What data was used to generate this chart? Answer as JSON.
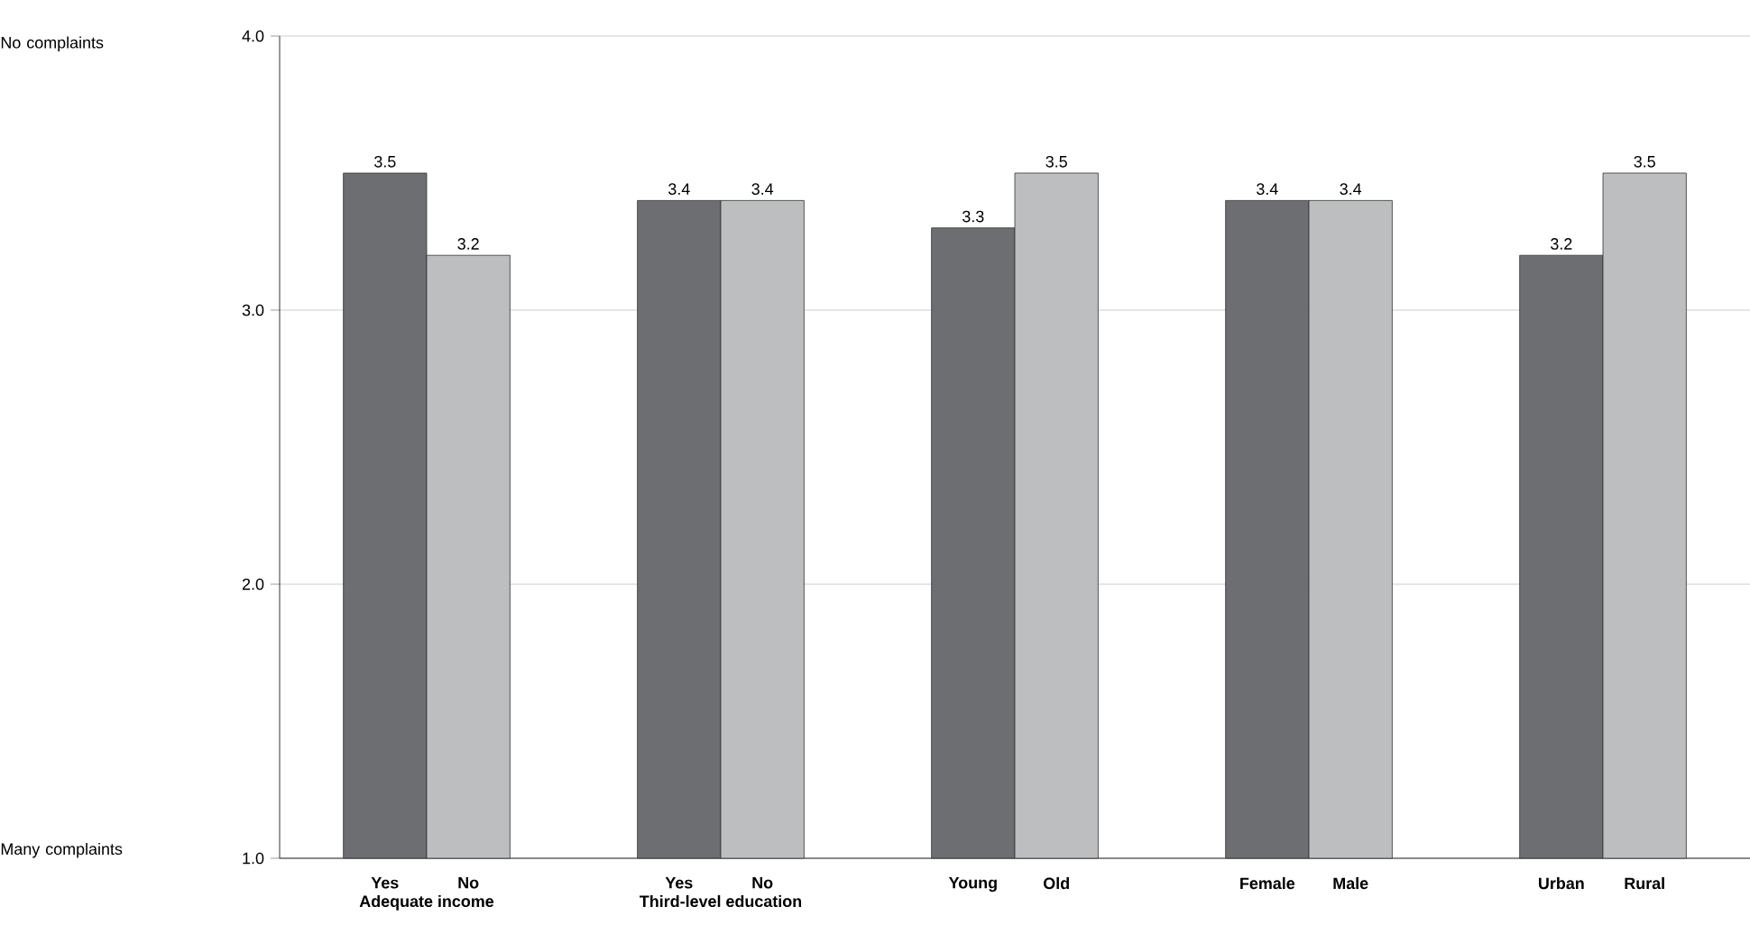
{
  "chart_data": {
    "type": "bar",
    "categories": [
      "Yes",
      "No",
      "Yes",
      "No",
      "Young",
      "Old",
      "Female",
      "Male",
      "Urban",
      "Rural"
    ],
    "values": [
      3.5,
      3.2,
      3.4,
      3.4,
      3.3,
      3.5,
      3.4,
      3.4,
      3.2,
      3.5
    ],
    "colors": [
      "#6d6e71",
      "#bcbec0",
      "#6d6e71",
      "#bcbec0",
      "#6d6e71",
      "#bcbec0",
      "#6d6e71",
      "#bcbec0",
      "#6d6e71",
      "#bcbec0"
    ],
    "ylim": [
      1,
      4
    ],
    "yticks": [
      {
        "value": 1,
        "label": "1.0"
      },
      {
        "value": 2,
        "label": "2.0"
      },
      {
        "value": 3,
        "label": "3.0"
      },
      {
        "value": 4,
        "label": "4.0"
      }
    ],
    "grid": "y",
    "data_labels": true,
    "annotations": [
      "Adequate income",
      "Third-level education",
      "No complaints",
      "Many complaints"
    ]
  }
}
